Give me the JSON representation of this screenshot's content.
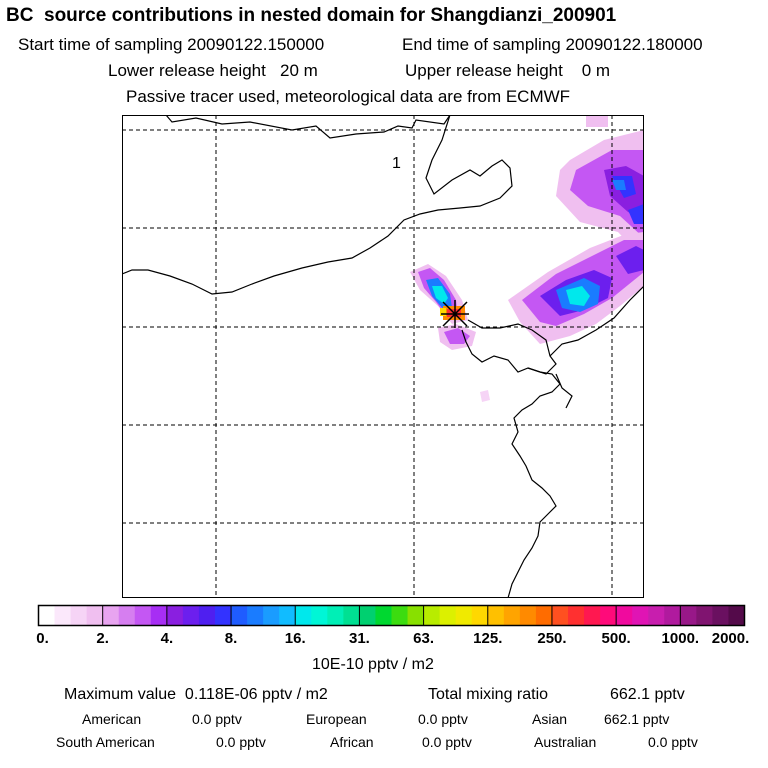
{
  "header": {
    "title": "BC  source contributions in nested domain for Shangdianzi_200901",
    "start_label": "Start time of sampling 20090122.150000",
    "end_label": "End time of sampling 20090122.180000",
    "lower_label": "Lower release height   20 m",
    "upper_label": "Upper release height    0 m",
    "tracer_note": "Passive tracer used, meteorological data are from ECMWF"
  },
  "map": {
    "marker_label": "1"
  },
  "legend": {
    "tick_labels": [
      "0.",
      "2.",
      "4.",
      "8.",
      "16.",
      "31.",
      "63.",
      "125.",
      "250.",
      "500.",
      "1000.",
      "2000."
    ],
    "unit": "10E-10 pptv / m2",
    "colors": [
      "#ffffff",
      "#fbe8fb",
      "#f6d4f6",
      "#f0bff0",
      "#e8a4f0",
      "#d67ef0",
      "#c457f3",
      "#a72ef4",
      "#8a1fe0",
      "#6c1fee",
      "#4f1ff0",
      "#3333ff",
      "#1f5cff",
      "#1a7cff",
      "#1a9cff",
      "#11bcff",
      "#00e8ec",
      "#00f6d6",
      "#00efb6",
      "#00e092",
      "#00d070",
      "#00d830",
      "#3cdc10",
      "#88e000",
      "#b8ec00",
      "#dcf000",
      "#f0ea00",
      "#ffd800",
      "#ffc000",
      "#ffa400",
      "#ff8a00",
      "#ff6c00",
      "#ff5020",
      "#ff3030",
      "#ff1850",
      "#ff0a7a",
      "#f00a9e",
      "#e014b4",
      "#c81eae",
      "#b01a9e",
      "#981888",
      "#801470",
      "#6a1060",
      "#540a4a"
    ]
  },
  "stats": {
    "max_label": "Maximum value  0.118E-06 pptv / m2",
    "total_label": "Total mixing ratio",
    "total_value": "662.1 pptv",
    "american_label": "American",
    "american_value": "0.0 pptv",
    "european_label": "European",
    "european_value": "0.0 pptv",
    "asian_label": "Asian",
    "asian_value": "662.1 pptv",
    "southamerican_label": "South American",
    "southamerican_value": "0.0 pptv",
    "african_label": "African",
    "african_value": "0.0 pptv",
    "australian_label": "Australian",
    "australian_value": "0.0 pptv"
  }
}
